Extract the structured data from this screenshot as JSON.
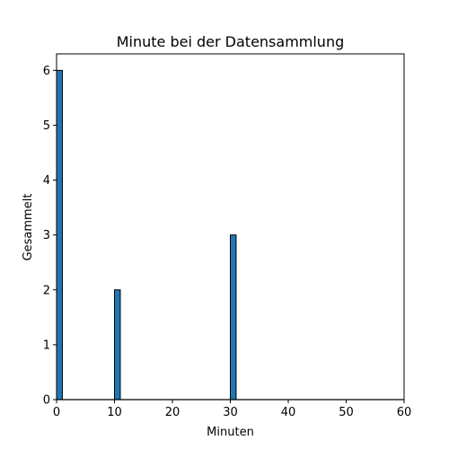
{
  "chart_data": {
    "type": "bar",
    "title": "Minute bei der Datensammlung",
    "xlabel": "Minuten",
    "ylabel": "Gesammelt",
    "xlim": [
      0,
      60
    ],
    "ylim": [
      0,
      6.3
    ],
    "xticks": [
      0,
      10,
      20,
      30,
      40,
      50,
      60
    ],
    "yticks": [
      0,
      1,
      2,
      3,
      4,
      5,
      6
    ],
    "bin_width": 1,
    "bars": [
      {
        "x": 0,
        "value": 6
      },
      {
        "x": 10,
        "value": 2
      },
      {
        "x": 30,
        "value": 3
      }
    ],
    "grid": false,
    "legend": "none"
  },
  "colors": {
    "bar_fill": "#1f77b4",
    "bar_edge": "#000000",
    "axis": "#000000"
  }
}
